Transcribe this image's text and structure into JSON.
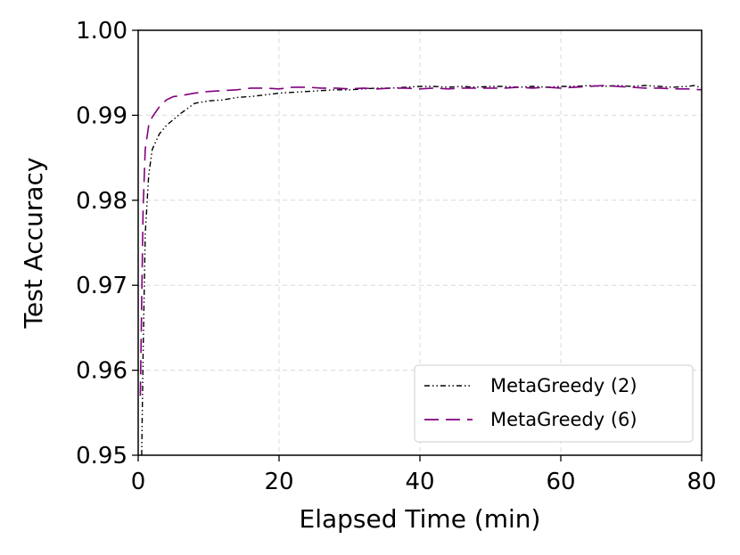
{
  "chart_data": {
    "type": "line",
    "xlabel": "Elapsed Time (min)",
    "ylabel": "Test Accuracy",
    "xlim": [
      0,
      80
    ],
    "ylim": [
      0.95,
      1.0
    ],
    "x_ticks": [
      "0",
      "20",
      "40",
      "60",
      "80"
    ],
    "y_ticks": [
      "0.95",
      "0.96",
      "0.97",
      "0.98",
      "0.99",
      "1.00"
    ],
    "grid": true,
    "legend_position": "lower-right",
    "series": [
      {
        "name": "MetaGreedy (2)",
        "color": "#000000",
        "style": "dash-dot-dot",
        "x": [
          0.5,
          0.7,
          1,
          1.5,
          2,
          3,
          4,
          5,
          6,
          7,
          8,
          10,
          12,
          14,
          16,
          18,
          20,
          22,
          24,
          26,
          28,
          30,
          32,
          34,
          36,
          38,
          40,
          42,
          44,
          46,
          48,
          50,
          52,
          54,
          56,
          58,
          60,
          62,
          64,
          66,
          68,
          70,
          72,
          74,
          76,
          78,
          79,
          80
        ],
        "y": [
          0.95,
          0.962,
          0.976,
          0.983,
          0.986,
          0.9878,
          0.9888,
          0.9895,
          0.9902,
          0.9908,
          0.9914,
          0.9917,
          0.9918,
          0.9921,
          0.9922,
          0.9924,
          0.9926,
          0.9927,
          0.9928,
          0.9929,
          0.993,
          0.993,
          0.9931,
          0.9932,
          0.9932,
          0.9933,
          0.9934,
          0.9934,
          0.9933,
          0.9934,
          0.9933,
          0.9934,
          0.9934,
          0.9933,
          0.9934,
          0.9933,
          0.9934,
          0.9934,
          0.9935,
          0.9934,
          0.9935,
          0.9934,
          0.9935,
          0.9934,
          0.9933,
          0.9934,
          0.9935,
          0.9932
        ]
      },
      {
        "name": "MetaGreedy (6)",
        "color": "#800080",
        "style": "long-dash",
        "x": [
          0.3,
          0.5,
          0.7,
          1,
          1.5,
          2,
          3,
          4,
          5,
          6,
          8,
          10,
          12,
          14,
          16,
          18,
          20,
          22,
          24,
          26,
          28,
          30,
          32,
          34,
          36,
          38,
          40,
          42,
          44,
          46,
          48,
          50,
          52,
          54,
          56,
          58,
          60,
          62,
          64,
          66,
          68,
          70,
          72,
          74,
          76,
          78,
          80
        ],
        "y": [
          0.957,
          0.968,
          0.979,
          0.986,
          0.9888,
          0.9898,
          0.991,
          0.9918,
          0.9922,
          0.9923,
          0.9926,
          0.9928,
          0.9929,
          0.993,
          0.9932,
          0.9932,
          0.9931,
          0.9933,
          0.9933,
          0.9932,
          0.9932,
          0.9931,
          0.9932,
          0.9931,
          0.9932,
          0.9932,
          0.9931,
          0.9932,
          0.9931,
          0.9932,
          0.9932,
          0.9932,
          0.9932,
          0.9933,
          0.9932,
          0.9933,
          0.9932,
          0.9933,
          0.9934,
          0.9935,
          0.9934,
          0.9933,
          0.9932,
          0.9932,
          0.9931,
          0.9931,
          0.993
        ]
      }
    ]
  }
}
